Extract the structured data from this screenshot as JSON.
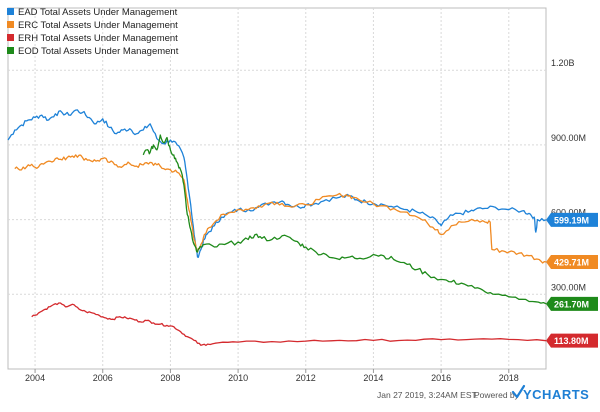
{
  "chart_data": {
    "type": "line",
    "title": "",
    "xlabel": "",
    "ylabel": "",
    "x_ticks": [
      "2004",
      "2006",
      "2008",
      "2010",
      "2012",
      "2014",
      "2016",
      "2018"
    ],
    "y_ticks": [
      {
        "value": 300,
        "label": "300.00M"
      },
      {
        "value": 600,
        "label": "600.00M"
      },
      {
        "value": 900,
        "label": "900.00M"
      },
      {
        "value": 1200,
        "label": "1.20B"
      }
    ],
    "ylim": [
      0,
      1450
    ],
    "xlim": [
      2003.2,
      2019.1
    ],
    "grid": true,
    "legend_position": "top-left",
    "series": [
      {
        "name": "EAD Total Assets Under Management",
        "color": "#1e82d8",
        "end_label": "599.19M",
        "end_value": 599.19,
        "points": [
          [
            2003.2,
            920
          ],
          [
            2003.4,
            960
          ],
          [
            2003.6,
            980
          ],
          [
            2003.8,
            1000
          ],
          [
            2004.0,
            1010
          ],
          [
            2004.2,
            1020
          ],
          [
            2004.4,
            1000
          ],
          [
            2004.6,
            1025
          ],
          [
            2004.8,
            1030
          ],
          [
            2005.0,
            1020
          ],
          [
            2005.2,
            1040
          ],
          [
            2005.4,
            1030
          ],
          [
            2005.6,
            1010
          ],
          [
            2005.8,
            985
          ],
          [
            2006.0,
            1005
          ],
          [
            2006.2,
            970
          ],
          [
            2006.4,
            945
          ],
          [
            2006.6,
            960
          ],
          [
            2006.8,
            965
          ],
          [
            2007.0,
            945
          ],
          [
            2007.2,
            960
          ],
          [
            2007.4,
            985
          ],
          [
            2007.6,
            925
          ],
          [
            2007.8,
            905
          ],
          [
            2008.0,
            920
          ],
          [
            2008.2,
            900
          ],
          [
            2008.4,
            850
          ],
          [
            2008.5,
            760
          ],
          [
            2008.6,
            660
          ],
          [
            2008.7,
            540
          ],
          [
            2008.8,
            450
          ],
          [
            2008.9,
            480
          ],
          [
            2009.0,
            520
          ],
          [
            2009.1,
            545
          ],
          [
            2009.3,
            575
          ],
          [
            2009.5,
            610
          ],
          [
            2009.8,
            630
          ],
          [
            2010.0,
            640
          ],
          [
            2010.3,
            640
          ],
          [
            2010.6,
            650
          ],
          [
            2011.0,
            670
          ],
          [
            2011.3,
            675
          ],
          [
            2011.5,
            660
          ],
          [
            2011.8,
            650
          ],
          [
            2012.0,
            660
          ],
          [
            2012.3,
            665
          ],
          [
            2012.6,
            680
          ],
          [
            2013.0,
            690
          ],
          [
            2013.3,
            695
          ],
          [
            2013.5,
            680
          ],
          [
            2013.8,
            670
          ],
          [
            2014.0,
            665
          ],
          [
            2014.3,
            660
          ],
          [
            2014.6,
            650
          ],
          [
            2015.0,
            640
          ],
          [
            2015.3,
            630
          ],
          [
            2015.6,
            615
          ],
          [
            2015.9,
            590
          ],
          [
            2016.0,
            575
          ],
          [
            2016.2,
            605
          ],
          [
            2016.5,
            625
          ],
          [
            2016.8,
            630
          ],
          [
            2017.0,
            640
          ],
          [
            2017.3,
            645
          ],
          [
            2017.6,
            650
          ],
          [
            2018.0,
            640
          ],
          [
            2018.4,
            635
          ],
          [
            2018.6,
            625
          ],
          [
            2018.75,
            610
          ],
          [
            2018.8,
            550
          ],
          [
            2018.85,
            600
          ],
          [
            2019.1,
            599.19
          ]
        ]
      },
      {
        "name": "ERC Total Assets Under Management",
        "color": "#f08a23",
        "end_label": "429.71M",
        "end_value": 429.71,
        "points": [
          [
            2003.4,
            805
          ],
          [
            2003.6,
            800
          ],
          [
            2003.8,
            820
          ],
          [
            2004.0,
            810
          ],
          [
            2004.2,
            825
          ],
          [
            2004.4,
            835
          ],
          [
            2004.6,
            845
          ],
          [
            2004.8,
            840
          ],
          [
            2005.0,
            855
          ],
          [
            2005.2,
            860
          ],
          [
            2005.4,
            850
          ],
          [
            2005.6,
            840
          ],
          [
            2005.8,
            835
          ],
          [
            2006.0,
            845
          ],
          [
            2006.2,
            830
          ],
          [
            2006.4,
            820
          ],
          [
            2006.6,
            815
          ],
          [
            2006.8,
            825
          ],
          [
            2007.0,
            815
          ],
          [
            2007.2,
            820
          ],
          [
            2007.4,
            830
          ],
          [
            2007.6,
            820
          ],
          [
            2007.8,
            805
          ],
          [
            2008.0,
            800
          ],
          [
            2008.2,
            790
          ],
          [
            2008.4,
            760
          ],
          [
            2008.5,
            680
          ],
          [
            2008.6,
            600
          ],
          [
            2008.7,
            520
          ],
          [
            2008.8,
            470
          ],
          [
            2008.9,
            500
          ],
          [
            2009.0,
            540
          ],
          [
            2009.2,
            570
          ],
          [
            2009.5,
            620
          ],
          [
            2009.8,
            630
          ],
          [
            2010.0,
            640
          ],
          [
            2010.3,
            640
          ],
          [
            2010.6,
            655
          ],
          [
            2011.0,
            670
          ],
          [
            2011.3,
            665
          ],
          [
            2011.6,
            650
          ],
          [
            2012.0,
            660
          ],
          [
            2012.4,
            680
          ],
          [
            2012.8,
            695
          ],
          [
            2013.2,
            700
          ],
          [
            2013.4,
            690
          ],
          [
            2013.8,
            670
          ],
          [
            2014.2,
            655
          ],
          [
            2014.6,
            645
          ],
          [
            2015.0,
            630
          ],
          [
            2015.3,
            610
          ],
          [
            2015.6,
            585
          ],
          [
            2015.9,
            560
          ],
          [
            2016.0,
            540
          ],
          [
            2016.3,
            575
          ],
          [
            2016.6,
            590
          ],
          [
            2017.0,
            595
          ],
          [
            2017.3,
            590
          ],
          [
            2017.45,
            590
          ],
          [
            2017.5,
            480
          ],
          [
            2017.8,
            475
          ],
          [
            2018.0,
            470
          ],
          [
            2018.3,
            465
          ],
          [
            2018.6,
            455
          ],
          [
            2018.9,
            440
          ],
          [
            2019.1,
            429.71
          ]
        ]
      },
      {
        "name": "ERH Total Assets Under Management",
        "color": "#d42a2e",
        "end_label": "113.80M",
        "end_value": 113.8,
        "points": [
          [
            2003.9,
            210
          ],
          [
            2004.1,
            225
          ],
          [
            2004.3,
            240
          ],
          [
            2004.5,
            255
          ],
          [
            2004.7,
            265
          ],
          [
            2004.9,
            250
          ],
          [
            2005.1,
            260
          ],
          [
            2005.3,
            240
          ],
          [
            2005.5,
            230
          ],
          [
            2005.7,
            225
          ],
          [
            2005.9,
            215
          ],
          [
            2006.1,
            205
          ],
          [
            2006.3,
            200
          ],
          [
            2006.5,
            210
          ],
          [
            2006.7,
            205
          ],
          [
            2006.9,
            200
          ],
          [
            2007.1,
            190
          ],
          [
            2007.3,
            195
          ],
          [
            2007.5,
            185
          ],
          [
            2007.7,
            180
          ],
          [
            2007.9,
            175
          ],
          [
            2008.1,
            170
          ],
          [
            2008.3,
            150
          ],
          [
            2008.5,
            130
          ],
          [
            2008.7,
            115
          ],
          [
            2008.9,
            95
          ],
          [
            2009.1,
            100
          ],
          [
            2009.4,
            105
          ],
          [
            2010.0,
            108
          ],
          [
            2011.0,
            110
          ],
          [
            2012.0,
            112
          ],
          [
            2013.0,
            115
          ],
          [
            2014.0,
            115
          ],
          [
            2015.0,
            116
          ],
          [
            2016.0,
            118
          ],
          [
            2017.0,
            120
          ],
          [
            2018.0,
            119
          ],
          [
            2019.1,
            113.8
          ]
        ]
      },
      {
        "name": "EOD Total Assets Under Management",
        "color": "#1e8a1a",
        "end_label": "261.70M",
        "end_value": 261.7,
        "points": [
          [
            2007.2,
            860
          ],
          [
            2007.3,
            880
          ],
          [
            2007.4,
            870
          ],
          [
            2007.5,
            900
          ],
          [
            2007.6,
            880
          ],
          [
            2007.7,
            940
          ],
          [
            2007.8,
            910
          ],
          [
            2007.9,
            930
          ],
          [
            2008.0,
            880
          ],
          [
            2008.1,
            860
          ],
          [
            2008.2,
            830
          ],
          [
            2008.3,
            800
          ],
          [
            2008.4,
            740
          ],
          [
            2008.5,
            620
          ],
          [
            2008.6,
            560
          ],
          [
            2008.7,
            500
          ],
          [
            2008.8,
            470
          ],
          [
            2008.9,
            490
          ],
          [
            2009.0,
            500
          ],
          [
            2009.3,
            490
          ],
          [
            2009.6,
            500
          ],
          [
            2010.0,
            510
          ],
          [
            2010.3,
            520
          ],
          [
            2010.5,
            540
          ],
          [
            2010.7,
            525
          ],
          [
            2011.0,
            520
          ],
          [
            2011.3,
            535
          ],
          [
            2011.6,
            520
          ],
          [
            2011.8,
            505
          ],
          [
            2012.0,
            490
          ],
          [
            2012.3,
            470
          ],
          [
            2012.6,
            460
          ],
          [
            2013.0,
            440
          ],
          [
            2013.3,
            450
          ],
          [
            2013.6,
            445
          ],
          [
            2014.0,
            460
          ],
          [
            2014.3,
            455
          ],
          [
            2014.6,
            440
          ],
          [
            2015.0,
            420
          ],
          [
            2015.3,
            400
          ],
          [
            2015.6,
            380
          ],
          [
            2016.0,
            360
          ],
          [
            2016.3,
            350
          ],
          [
            2016.6,
            345
          ],
          [
            2017.0,
            325
          ],
          [
            2017.3,
            310
          ],
          [
            2017.6,
            300
          ],
          [
            2018.0,
            290
          ],
          [
            2018.4,
            280
          ],
          [
            2018.8,
            270
          ],
          [
            2019.1,
            261.7
          ]
        ]
      }
    ]
  },
  "footer": {
    "timestamp": "Jan 27 2019, 3:24AM EST.",
    "powered_by": "Powered by",
    "brand": "YCHARTS",
    "brand_color": "#1e7fd4"
  }
}
